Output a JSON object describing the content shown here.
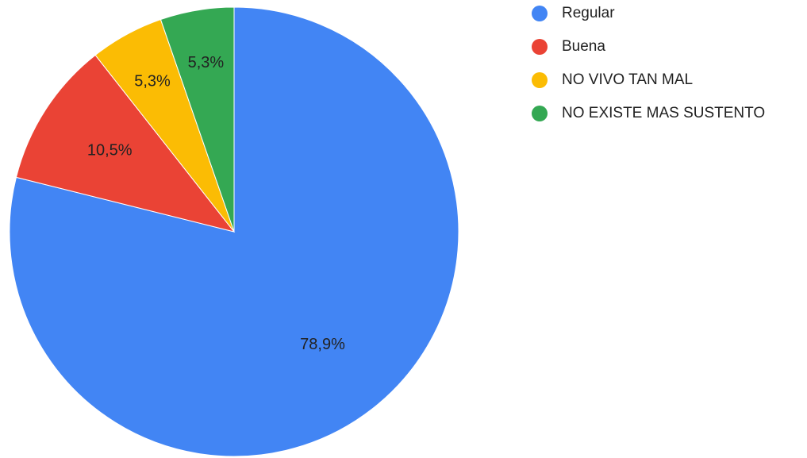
{
  "chart_data": {
    "type": "pie",
    "categories": [
      "Regular",
      "Buena",
      "NO VIVO TAN MAL",
      "NO EXISTE MAS SUSTENTO"
    ],
    "values": [
      78.9,
      10.5,
      5.3,
      5.3
    ],
    "labels": [
      "78,9%",
      "10,5%",
      "5,3%",
      "5,3%"
    ],
    "colors": [
      "#4285f4",
      "#ea4335",
      "#fbbc04",
      "#34a853"
    ],
    "start_angle": "12 o'clock",
    "direction": "clockwise",
    "legend_position": "top-right"
  }
}
